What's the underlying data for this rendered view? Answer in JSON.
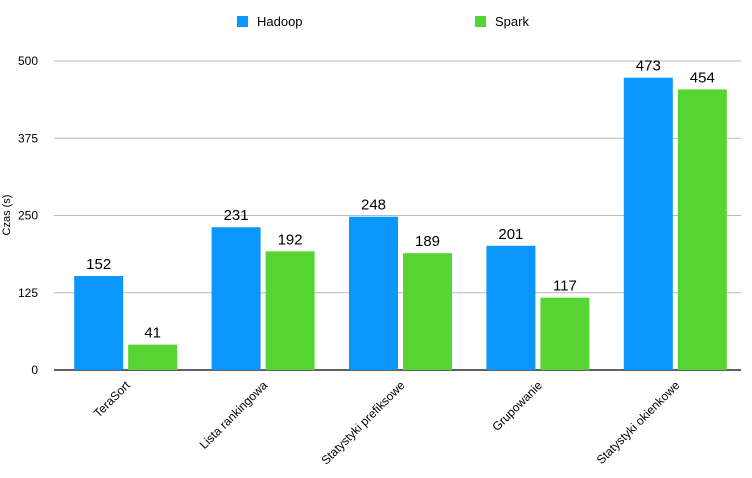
{
  "chart_data": {
    "type": "bar",
    "title": "",
    "xlabel": "",
    "ylabel": "Czas (s)",
    "ylim": [
      0,
      500
    ],
    "yticks": [
      0,
      125,
      250,
      375,
      500
    ],
    "grid": true,
    "legend_position": "top",
    "categories": [
      "TeraSort",
      "Lista rankingowa",
      "Statystyki prefiksowe",
      "Grupowanie",
      "Statystyki okienkowe"
    ],
    "series": [
      {
        "name": "Hadoop",
        "color": "#0b96fb",
        "values": [
          152,
          231,
          248,
          201,
          473
        ]
      },
      {
        "name": "Spark",
        "color": "#56d431",
        "values": [
          41,
          192,
          189,
          117,
          454
        ]
      }
    ]
  }
}
